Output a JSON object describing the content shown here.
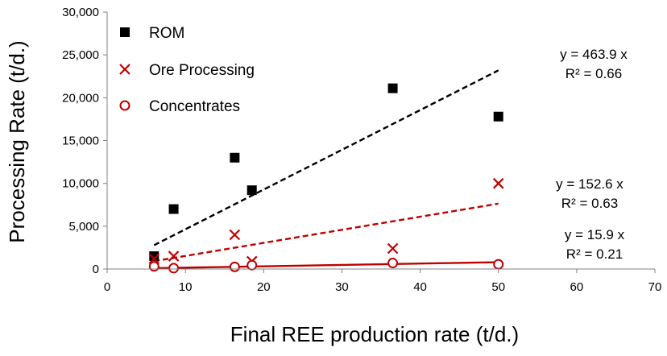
{
  "chart_data": {
    "type": "scatter",
    "xlabel": "Final REE production rate (t/d.)",
    "ylabel": "Processing Rate (t/d.)",
    "xlim": [
      0,
      70
    ],
    "ylim": [
      0,
      30000
    ],
    "xticks": [
      "0",
      "10",
      "20",
      "30",
      "40",
      "50",
      "60",
      "70"
    ],
    "yticks": [
      "0",
      "5,000",
      "10,000",
      "15,000",
      "20,000",
      "25,000",
      "30,000"
    ],
    "grid": false,
    "legend_position": "top-left",
    "series": [
      {
        "name": "ROM",
        "marker": "square",
        "color": "#000000",
        "points": [
          [
            6,
            1500
          ],
          [
            8.5,
            7000
          ],
          [
            16.3,
            13000
          ],
          [
            18.5,
            9200
          ],
          [
            36.5,
            21100
          ],
          [
            50,
            17800
          ]
        ],
        "trendline": {
          "slope": 463.9,
          "x_range": [
            6,
            50
          ],
          "style": "dashed",
          "color": "#000000",
          "equation": "y = 463.9 x",
          "r2": "R² = 0.66"
        }
      },
      {
        "name": "Ore Processing",
        "marker": "x",
        "color": "#c00000",
        "points": [
          [
            6,
            1200
          ],
          [
            8.5,
            1500
          ],
          [
            16.3,
            4000
          ],
          [
            18.5,
            900
          ],
          [
            36.5,
            2400
          ],
          [
            50,
            10000
          ]
        ],
        "trendline": {
          "slope": 152.6,
          "x_range": [
            6,
            50
          ],
          "style": "dashed",
          "color": "#c00000",
          "equation": "y = 152.6 x",
          "r2": "R² = 0.63"
        }
      },
      {
        "name": "Concentrates",
        "marker": "circle",
        "color": "#c00000",
        "points": [
          [
            6,
            300
          ],
          [
            8.5,
            100
          ],
          [
            16.3,
            250
          ],
          [
            18.5,
            450
          ],
          [
            36.5,
            700
          ],
          [
            50,
            550
          ]
        ],
        "trendline": {
          "slope": 15.9,
          "x_range": [
            6,
            50
          ],
          "style": "solid",
          "color": "#c00000",
          "equation": "y = 15.9 x",
          "r2": "R² = 0.21"
        }
      }
    ]
  }
}
